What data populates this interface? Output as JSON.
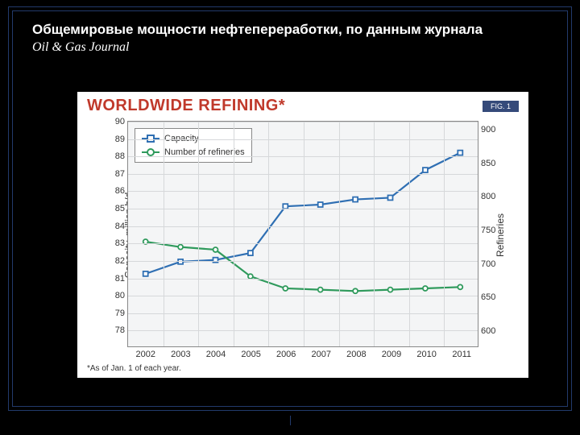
{
  "slide": {
    "title_line1": "Общемировые мощности  нефтепереработки, по данным журнала",
    "title_line2": "Oil & Gas Journal"
  },
  "chart": {
    "type": "line",
    "title": "WORLDWIDE REFINING*",
    "fig_label": "FIG. 1",
    "footnote": "*As of Jan. 1 of each year.",
    "background_color": "#ffffff",
    "plot_background": "#f4f5f6",
    "grid_color": "#d6d8da",
    "border_color": "#888888",
    "title_color": "#c0392b",
    "title_fontsize": 20,
    "label_fontsize": 11,
    "x": {
      "categories": [
        "2002",
        "2003",
        "2004",
        "2005",
        "2006",
        "2007",
        "2008",
        "2009",
        "2010",
        "2011"
      ]
    },
    "y_left": {
      "title": "Capacity, million b/d",
      "min": 77,
      "max": 90,
      "ticks": [
        78,
        79,
        80,
        81,
        82,
        83,
        84,
        85,
        86,
        87,
        88,
        89,
        90
      ]
    },
    "y_right": {
      "title": "Refineries",
      "min": 575,
      "max": 912,
      "ticks": [
        600,
        650,
        700,
        750,
        800,
        850,
        900
      ]
    },
    "series": [
      {
        "name": "Capacity",
        "axis": "left",
        "color": "#2f6fb3",
        "line_width": 2.2,
        "marker": "square",
        "marker_size": 6,
        "values": [
          81.2,
          81.9,
          82.0,
          82.4,
          85.1,
          85.2,
          85.5,
          85.6,
          87.2,
          88.2
        ]
      },
      {
        "name": "Number of refineries",
        "axis": "right",
        "color": "#2f9a5c",
        "line_width": 2.2,
        "marker": "circle",
        "marker_size": 6,
        "values": [
          732,
          724,
          720,
          680,
          662,
          660,
          658,
          660,
          662,
          664
        ]
      }
    ],
    "legend": {
      "position": "top-left"
    }
  }
}
